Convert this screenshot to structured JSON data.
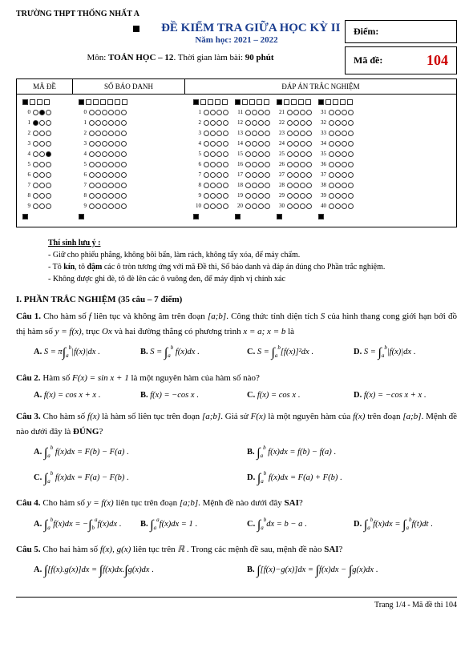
{
  "school": "TRƯỜNG THPT THỐNG NHẤT A",
  "title": "ĐỀ KIỂM TRA GIỮA HỌC KỲ II",
  "year": "Năm học: 2021 – 2022",
  "subject_line_prefix": "Môn: ",
  "subject": "TOÁN HỌC – 12",
  "time_text": ". Thời gian làm bài: ",
  "time": "90 phút",
  "score_label": "Điểm:",
  "code_label": "Mã đề:",
  "code_value": "104",
  "omr": {
    "h_ma": "MÃ ĐỀ",
    "h_sbd": "SỐ BÁO DANH",
    "h_ans": "ĐÁP ÁN TRẮC NGHIỆM",
    "ma_rows": [
      0,
      1,
      2,
      3,
      4,
      5,
      6,
      7,
      8,
      9
    ],
    "ma_fill": [
      [
        0,
        1
      ],
      [
        1,
        0
      ],
      [
        4,
        2
      ]
    ],
    "sbd_rows": [
      0,
      1,
      2,
      3,
      4,
      5,
      6,
      7,
      8,
      9
    ],
    "ans_cols": [
      [
        1,
        2,
        3,
        4,
        5,
        6,
        7,
        8,
        9,
        10
      ],
      [
        11,
        12,
        13,
        14,
        15,
        16,
        17,
        18,
        19,
        20
      ],
      [
        21,
        22,
        23,
        24,
        25,
        26,
        27,
        28,
        29,
        30
      ],
      [
        31,
        32,
        33,
        34,
        35,
        36,
        37,
        38,
        39,
        40
      ]
    ]
  },
  "notes": {
    "title": "Thí sinh lưu ý :",
    "l1": "- Giữ cho phiếu phẳng, không bôi bẩn, làm rách, không tẩy xóa, để máy chấm.",
    "l2a": "- Tô ",
    "l2b": "kín",
    "l2c": ", tô ",
    "l2d": "đậm",
    "l2e": " các ô tròn tương ứng với mã Đề thi, Số báo danh và đáp án đúng cho Phần trắc nghiệm.",
    "l3": "- Không được ghi đè, tô đè lên các ô vuông đen, để máy định vị chính xác"
  },
  "section1": "I. PHẦN TRẮC NGHIỆM (35 câu – 7 điểm)",
  "q1": {
    "num": "Câu 1.",
    "text1": " Cho hàm số ",
    "f": "f",
    "text2": " liên tục và không âm trên đoạn ",
    "ab": "[a;b]",
    "text3": ". Công thức tính diện tích ",
    "S": "S",
    "text4": " của hình thang cong giới hạn bởi đồ thị hàm số ",
    "yfx": "y = f(x)",
    "text5": ", trục ",
    "Ox": "Ox",
    "text6": " và hai đường thẳng có phương trình ",
    "xa": "x = a; x = b",
    "text7": " là"
  },
  "q2": {
    "num": "Câu 2.",
    "text": " Hàm số ",
    "Fx": "F(x) = sin x + 1",
    "text2": " là một nguyên hàm của hàm số nào?"
  },
  "q3": {
    "num": "Câu 3.",
    "t1": " Cho hàm số ",
    "t2": " là hàm số liên tục trên đoạn ",
    "t3": ". Giả sử ",
    "t4": " là một nguyên hàm của ",
    "t5": " trên đoạn ",
    "t6": ". Mệnh đề nào dưới đây là ",
    "dung": "ĐÚNG",
    "q": "?"
  },
  "q4": {
    "num": "Câu 4.",
    "t1": " Cho hàm số ",
    "t2": " liên tục trên đoạn ",
    "t3": ". Mệnh đề nào dưới đây ",
    "sai": "SAI",
    "q": "?"
  },
  "q5": {
    "num": "Câu 5.",
    "t1": " Cho hai hàm số ",
    "t2": " liên tục trên ",
    "R": "ℝ",
    "t3": " . Trong các mệnh đề sau, mệnh đề nào ",
    "sai": "SAI",
    "q": "?"
  },
  "footer": "Trang 1/4 - Mã đề thi 104"
}
